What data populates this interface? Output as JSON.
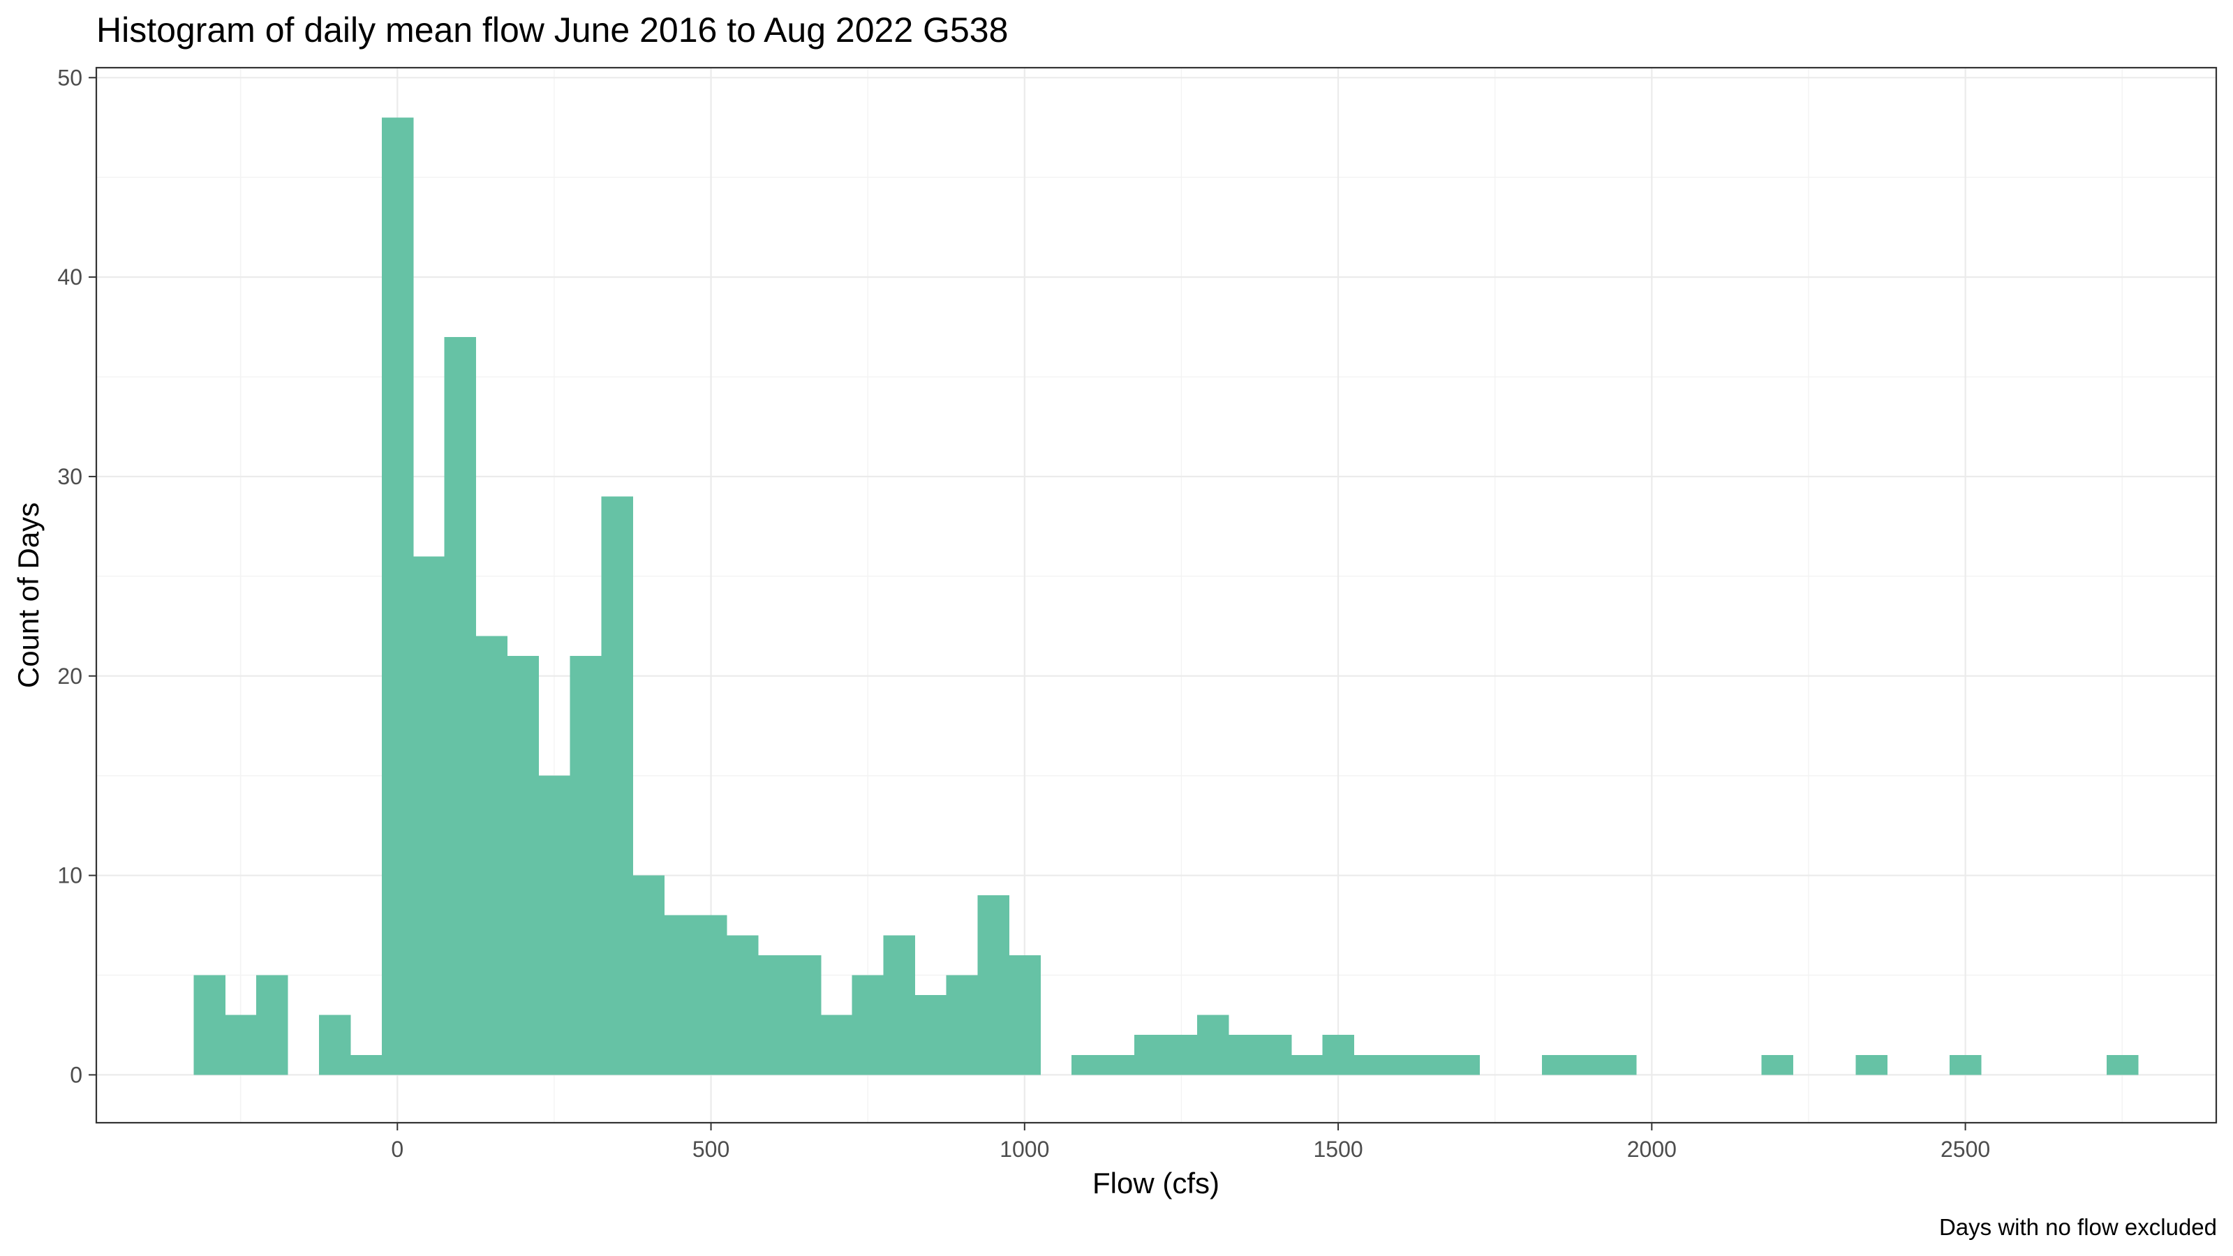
{
  "chart_data": {
    "type": "bar",
    "title": "Histogram of daily mean flow June 2016 to Aug 2022 G538",
    "xlabel": "Flow (cfs)",
    "ylabel": "Count of Days",
    "caption": "Days with no flow excluded",
    "xlim": [
      -480,
      2900
    ],
    "ylim": [
      -2.4,
      50.5
    ],
    "x_ticks": [
      0,
      500,
      1000,
      1500,
      2000,
      2500
    ],
    "y_ticks": [
      0,
      10,
      20,
      30,
      40,
      50
    ],
    "bin_width": 50,
    "grid": true,
    "fill_color": "#66c2a5",
    "bins": [
      {
        "start": -325,
        "end": -275,
        "count": 5
      },
      {
        "start": -275,
        "end": -225,
        "count": 3
      },
      {
        "start": -225,
        "end": -175,
        "count": 5
      },
      {
        "start": -125,
        "end": -75,
        "count": 3
      },
      {
        "start": -75,
        "end": -25,
        "count": 1
      },
      {
        "start": -25,
        "end": 25,
        "count": 48
      },
      {
        "start": 25,
        "end": 75,
        "count": 26
      },
      {
        "start": 75,
        "end": 125,
        "count": 37
      },
      {
        "start": 125,
        "end": 175,
        "count": 22
      },
      {
        "start": 175,
        "end": 225,
        "count": 21
      },
      {
        "start": 225,
        "end": 275,
        "count": 15
      },
      {
        "start": 275,
        "end": 325,
        "count": 21
      },
      {
        "start": 325,
        "end": 375,
        "count": 29
      },
      {
        "start": 375,
        "end": 425,
        "count": 10
      },
      {
        "start": 425,
        "end": 475,
        "count": 8
      },
      {
        "start": 475,
        "end": 525,
        "count": 8
      },
      {
        "start": 525,
        "end": 575,
        "count": 7
      },
      {
        "start": 575,
        "end": 625,
        "count": 6
      },
      {
        "start": 625,
        "end": 675,
        "count": 6
      },
      {
        "start": 675,
        "end": 725,
        "count": 3
      },
      {
        "start": 725,
        "end": 775,
        "count": 5
      },
      {
        "start": 775,
        "end": 825,
        "count": 7
      },
      {
        "start": 825,
        "end": 875,
        "count": 4
      },
      {
        "start": 875,
        "end": 925,
        "count": 5
      },
      {
        "start": 925,
        "end": 975,
        "count": 9
      },
      {
        "start": 975,
        "end": 1025,
        "count": 6
      },
      {
        "start": 1075,
        "end": 1125,
        "count": 1
      },
      {
        "start": 1125,
        "end": 1175,
        "count": 1
      },
      {
        "start": 1175,
        "end": 1225,
        "count": 2
      },
      {
        "start": 1225,
        "end": 1275,
        "count": 2
      },
      {
        "start": 1275,
        "end": 1325,
        "count": 3
      },
      {
        "start": 1325,
        "end": 1375,
        "count": 2
      },
      {
        "start": 1375,
        "end": 1425,
        "count": 2
      },
      {
        "start": 1425,
        "end": 1475,
        "count": 1
      },
      {
        "start": 1475,
        "end": 1525,
        "count": 2
      },
      {
        "start": 1525,
        "end": 1575,
        "count": 1
      },
      {
        "start": 1575,
        "end": 1625,
        "count": 1
      },
      {
        "start": 1625,
        "end": 1675,
        "count": 1
      },
      {
        "start": 1675,
        "end": 1725,
        "count": 1
      },
      {
        "start": 1825,
        "end": 1875,
        "count": 1
      },
      {
        "start": 1875,
        "end": 1925,
        "count": 1
      },
      {
        "start": 1925,
        "end": 1975,
        "count": 1
      },
      {
        "start": 2175,
        "end": 2225,
        "count": 1
      },
      {
        "start": 2325,
        "end": 2375,
        "count": 1
      },
      {
        "start": 2475,
        "end": 2525,
        "count": 1
      },
      {
        "start": 2725,
        "end": 2775,
        "count": 1
      }
    ]
  }
}
